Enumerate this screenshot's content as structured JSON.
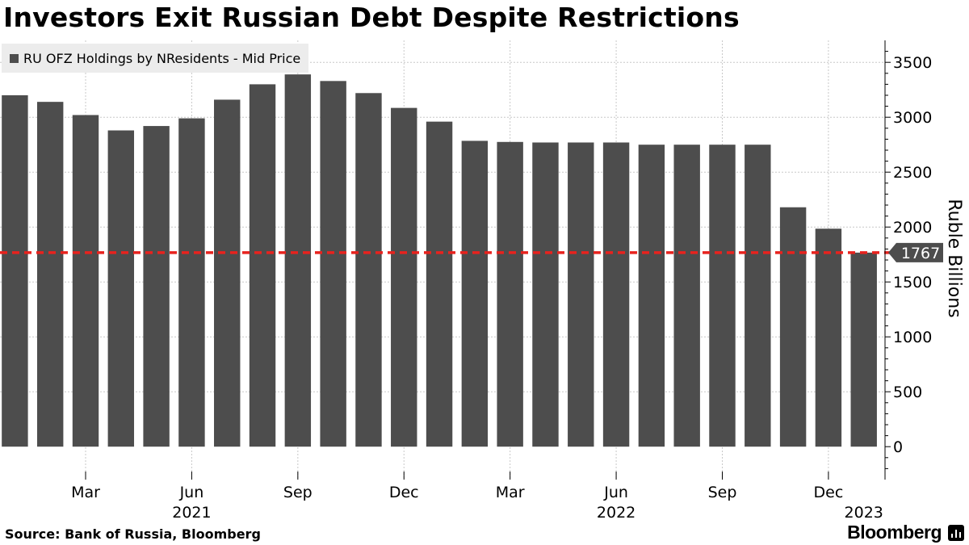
{
  "header": {
    "title": "Investors Exit Russian Debt Despite Restrictions"
  },
  "footer": {
    "source": "Source:  Bank of Russia, Bloomberg",
    "brand": "Bloomberg"
  },
  "colors": {
    "bar": "#4d4d4d",
    "reference_line": "#e8221e",
    "grid": "#c8c8c8"
  },
  "chart_data": {
    "type": "bar",
    "title": "Investors Exit Russian Debt Despite Restrictions",
    "legend": {
      "placement": "top-left",
      "entries": [
        "RU OFZ Holdings by NResidents - Mid Price"
      ]
    },
    "series": [
      {
        "name": "RU OFZ Holdings by NResidents - Mid Price",
        "values": [
          3200,
          3140,
          3020,
          2880,
          2920,
          2990,
          3160,
          3300,
          3390,
          3330,
          3220,
          3085,
          2960,
          2785,
          2775,
          2770,
          2770,
          2770,
          2750,
          2750,
          2750,
          2750,
          2180,
          1985,
          1767
        ]
      }
    ],
    "categories": [
      "2021-01",
      "2021-02",
      "2021-03",
      "2021-04",
      "2021-05",
      "2021-06",
      "2021-07",
      "2021-08",
      "2021-09",
      "2021-10",
      "2021-11",
      "2021-12",
      "2022-01",
      "2022-02",
      "2022-03",
      "2022-04",
      "2022-05",
      "2022-06",
      "2022-07",
      "2022-08",
      "2022-09",
      "2022-10",
      "2022-11",
      "2022-12",
      "2023-01"
    ],
    "x_tick_labels": [
      {
        "category": "2021-03",
        "label": "Mar"
      },
      {
        "category": "2021-06",
        "label": "Jun"
      },
      {
        "category": "2021-09",
        "label": "Sep"
      },
      {
        "category": "2021-12",
        "label": "Dec"
      },
      {
        "category": "2022-03",
        "label": "Mar"
      },
      {
        "category": "2022-06",
        "label": "Jun"
      },
      {
        "category": "2022-09",
        "label": "Sep"
      },
      {
        "category": "2022-12",
        "label": "Dec"
      }
    ],
    "x_year_labels": [
      {
        "category": "2021-06",
        "label": "2021"
      },
      {
        "category": "2022-06",
        "label": "2022"
      },
      {
        "category": "2023-01",
        "label": "2023"
      }
    ],
    "ylabel": "Ruble Billions",
    "y_axis_side": "right",
    "ylim": [
      -300,
      3700
    ],
    "y_ticks": [
      0,
      500,
      1000,
      1500,
      2000,
      2500,
      3000,
      3500
    ],
    "grid": true,
    "reference_line": {
      "value": 1767,
      "label": "1767",
      "style": "dashed"
    }
  }
}
